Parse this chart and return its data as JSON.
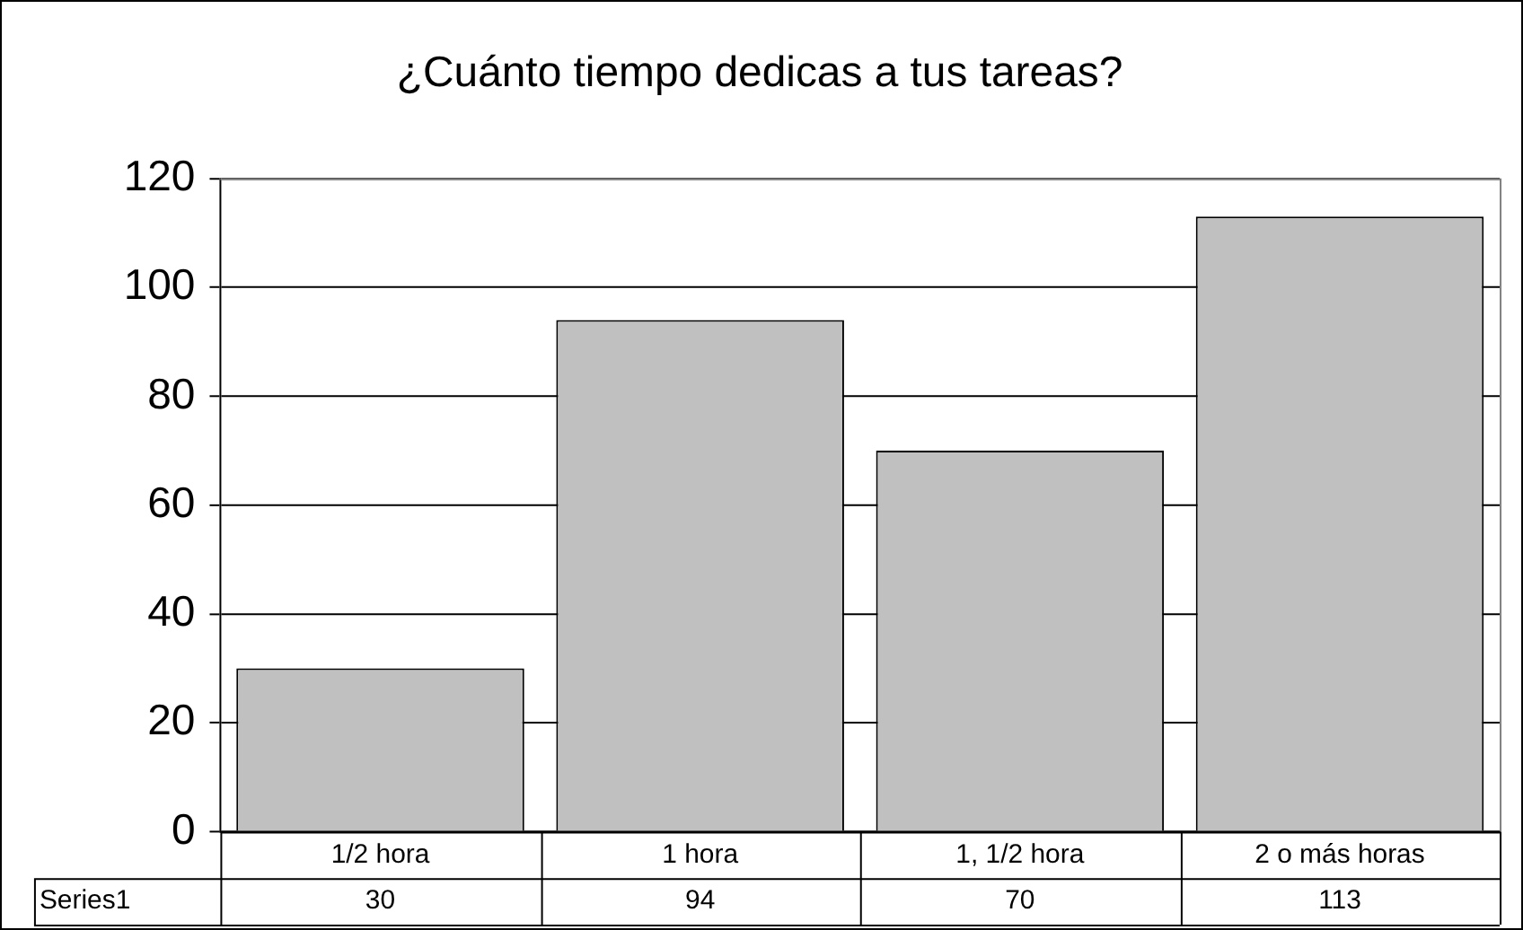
{
  "chart_data": {
    "type": "bar",
    "title": "¿Cuánto tiempo dedicas a tus tareas?",
    "categories": [
      "1/2 hora",
      "1 hora",
      "1, 1/2 hora",
      "2 o más horas"
    ],
    "series": [
      {
        "name": "Series1",
        "color": "#c0c0c0",
        "values": [
          30,
          94,
          70,
          113
        ]
      }
    ],
    "ylim": [
      0,
      120
    ],
    "yticks": [
      0,
      20,
      40,
      60,
      80,
      100,
      120
    ],
    "grid": "y",
    "legend": false,
    "data_labels": true
  }
}
